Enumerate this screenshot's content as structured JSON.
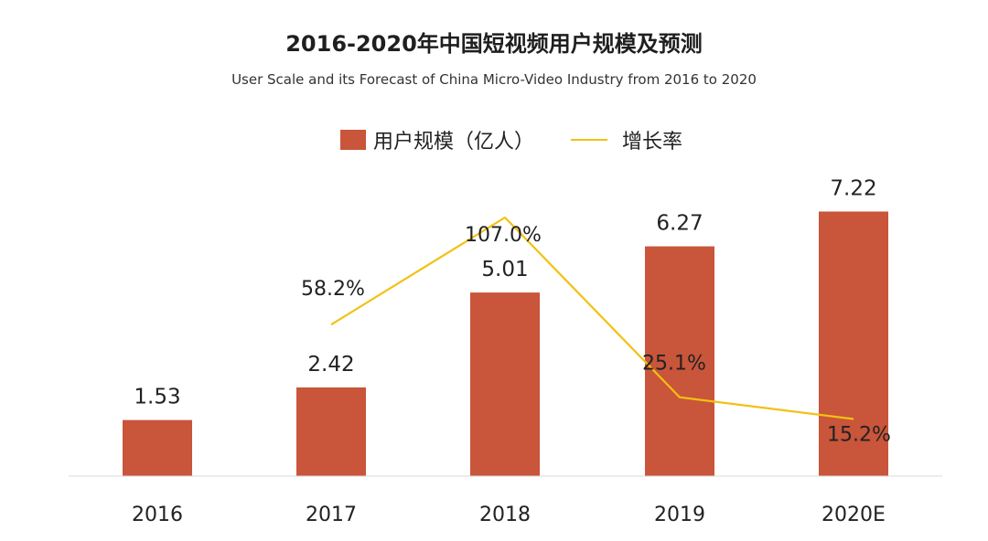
{
  "chart_data": {
    "type": "bar",
    "title": "2016-2020年中国短视频用户规模及预测",
    "subtitle": "User Scale and its Forecast of China Micro-Video Industry from 2016 to 2020",
    "categories": [
      "2016",
      "2017",
      "2018",
      "2019",
      "2020E"
    ],
    "series": [
      {
        "name": "用户规模（亿人）",
        "type": "bar",
        "values": [
          1.53,
          2.42,
          5.01,
          6.27,
          7.22
        ],
        "value_labels": [
          "1.53",
          "2.42",
          "5.01",
          "6.27",
          "7.22"
        ],
        "color": "#c9553a"
      },
      {
        "name": "增长率",
        "type": "line",
        "values": [
          null,
          58.2,
          107.0,
          25.1,
          15.2
        ],
        "value_labels": [
          "",
          "58.2%",
          "107.0%",
          "25.1%",
          "15.2%"
        ],
        "color": "#f2c112"
      }
    ],
    "legend_position": "top-center",
    "grid": false,
    "xlabel": "",
    "ylabel": ""
  }
}
